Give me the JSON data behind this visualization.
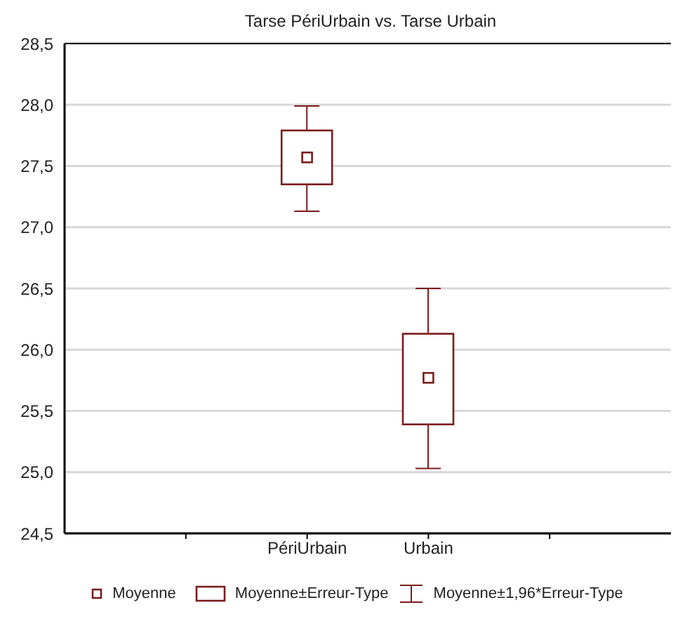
{
  "chart_data": {
    "type": "box",
    "title": "Tarse PériUrbain vs. Tarse Urbain",
    "categories": [
      "PériUrbain",
      "Urbain"
    ],
    "color": "#7b1c1c",
    "boxes": [
      {
        "low": 27.13,
        "q1": 27.35,
        "q3": 27.79,
        "high": 27.99,
        "mean": 27.57
      },
      {
        "low": 25.03,
        "q1": 25.39,
        "q3": 26.13,
        "high": 26.5,
        "mean": 25.77
      }
    ],
    "ylim": [
      24.5,
      28.5
    ],
    "yticks": [
      {
        "value": 24.5,
        "label": "24,5"
      },
      {
        "value": 25,
        "label": "25,0"
      },
      {
        "value": 25.5,
        "label": "25,5"
      },
      {
        "value": 26,
        "label": "26,0"
      },
      {
        "value": 26.5,
        "label": "26,5"
      },
      {
        "value": 27,
        "label": "27,0"
      },
      {
        "value": 27.5,
        "label": "27,5"
      },
      {
        "value": 28,
        "label": "28,0"
      },
      {
        "value": 28.5,
        "label": "28,5"
      }
    ],
    "grid": "y",
    "marker": "square",
    "annotations": [
      "Moyenne",
      "Moyenne±Erreur-Type",
      "Moyenne±1,96*Erreur-Type"
    ]
  }
}
